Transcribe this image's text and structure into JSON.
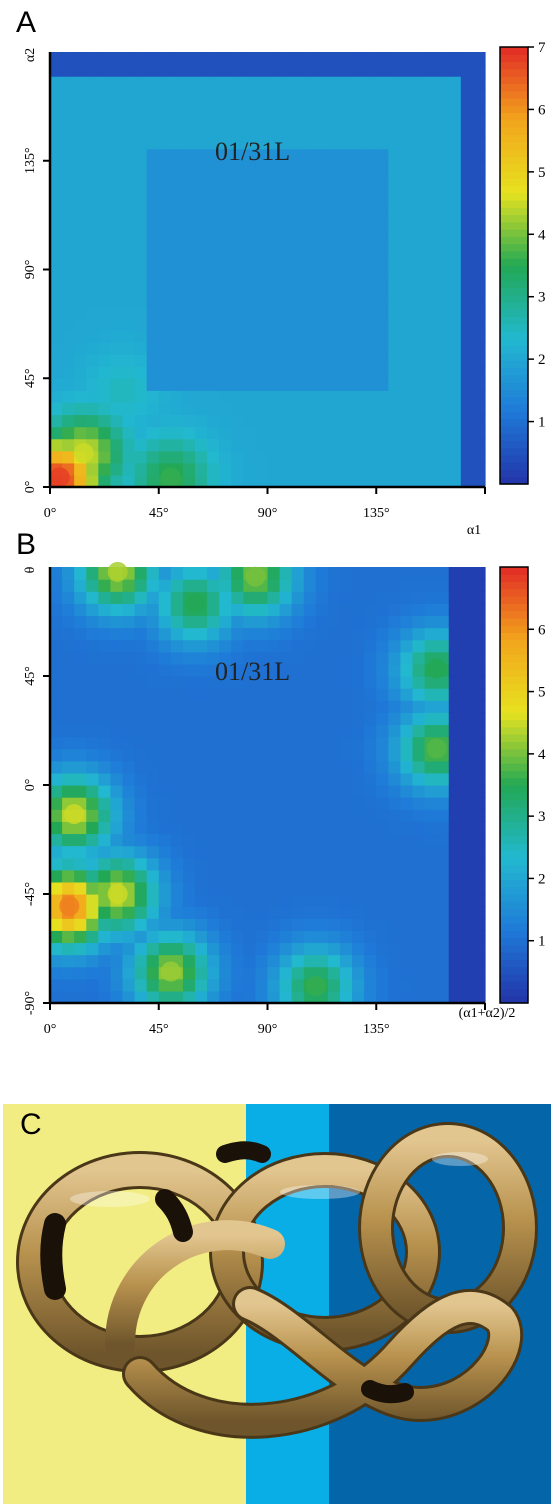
{
  "panels": {
    "a": {
      "letter": "A"
    },
    "b": {
      "letter": "B"
    },
    "c": {
      "letter": "C"
    }
  },
  "colormap": [
    "#2233a8",
    "#1f7ad8",
    "#22b8d0",
    "#22a855",
    "#e6e21f",
    "#f3a51c",
    "#e22b26"
  ],
  "chart_data": [
    {
      "type": "heatmap",
      "panel": "A",
      "xlabel": "α1",
      "ylabel": "α2",
      "xticks": [
        "0°",
        "45°",
        "90°",
        "135°"
      ],
      "yticks": [
        "0°",
        "45°",
        "90°",
        "135°"
      ],
      "xlim": [
        0,
        180
      ],
      "ylim": [
        0,
        180
      ],
      "annotation": "01/31L",
      "colorbar": {
        "ticks": [
          "1",
          "2",
          "3",
          "4",
          "5",
          "6",
          "7"
        ],
        "range": [
          0,
          7
        ]
      },
      "background_value": 2.0,
      "edge_value": 0.5,
      "hotspots": [
        {
          "x": 4,
          "y": 4,
          "value": 6.8
        },
        {
          "x": 14,
          "y": 14,
          "value": 4.5
        },
        {
          "x": 50,
          "y": 4,
          "value": 3.6
        },
        {
          "x": 30,
          "y": 40,
          "value": 2.5
        }
      ]
    },
    {
      "type": "heatmap",
      "panel": "B",
      "xlabel": "(α1+α2)/2",
      "ylabel": "θ",
      "xticks": [
        "0°",
        "45°",
        "90°",
        "135°"
      ],
      "yticks": [
        "-90°",
        "-45°",
        "0°",
        "45°"
      ],
      "xlim": [
        0,
        180
      ],
      "ylim": [
        -90,
        90
      ],
      "annotation": "01/31L",
      "colorbar": {
        "ticks": [
          "1",
          "2",
          "3",
          "4",
          "5",
          "6"
        ],
        "range": [
          0,
          7
        ]
      },
      "background_value": 1.0,
      "hotspots": [
        {
          "x": 8,
          "y": -50,
          "value": 6.2
        },
        {
          "x": 10,
          "y": -12,
          "value": 4.5
        },
        {
          "x": 28,
          "y": -45,
          "value": 4.5
        },
        {
          "x": 50,
          "y": -77,
          "value": 4.2
        },
        {
          "x": 28,
          "y": 88,
          "value": 4.3
        },
        {
          "x": 85,
          "y": 86,
          "value": 4.0
        },
        {
          "x": 60,
          "y": 75,
          "value": 3.5
        },
        {
          "x": 160,
          "y": 15,
          "value": 3.8
        },
        {
          "x": 160,
          "y": 48,
          "value": 3.5
        },
        {
          "x": 110,
          "y": -83,
          "value": 3.6
        }
      ]
    }
  ]
}
